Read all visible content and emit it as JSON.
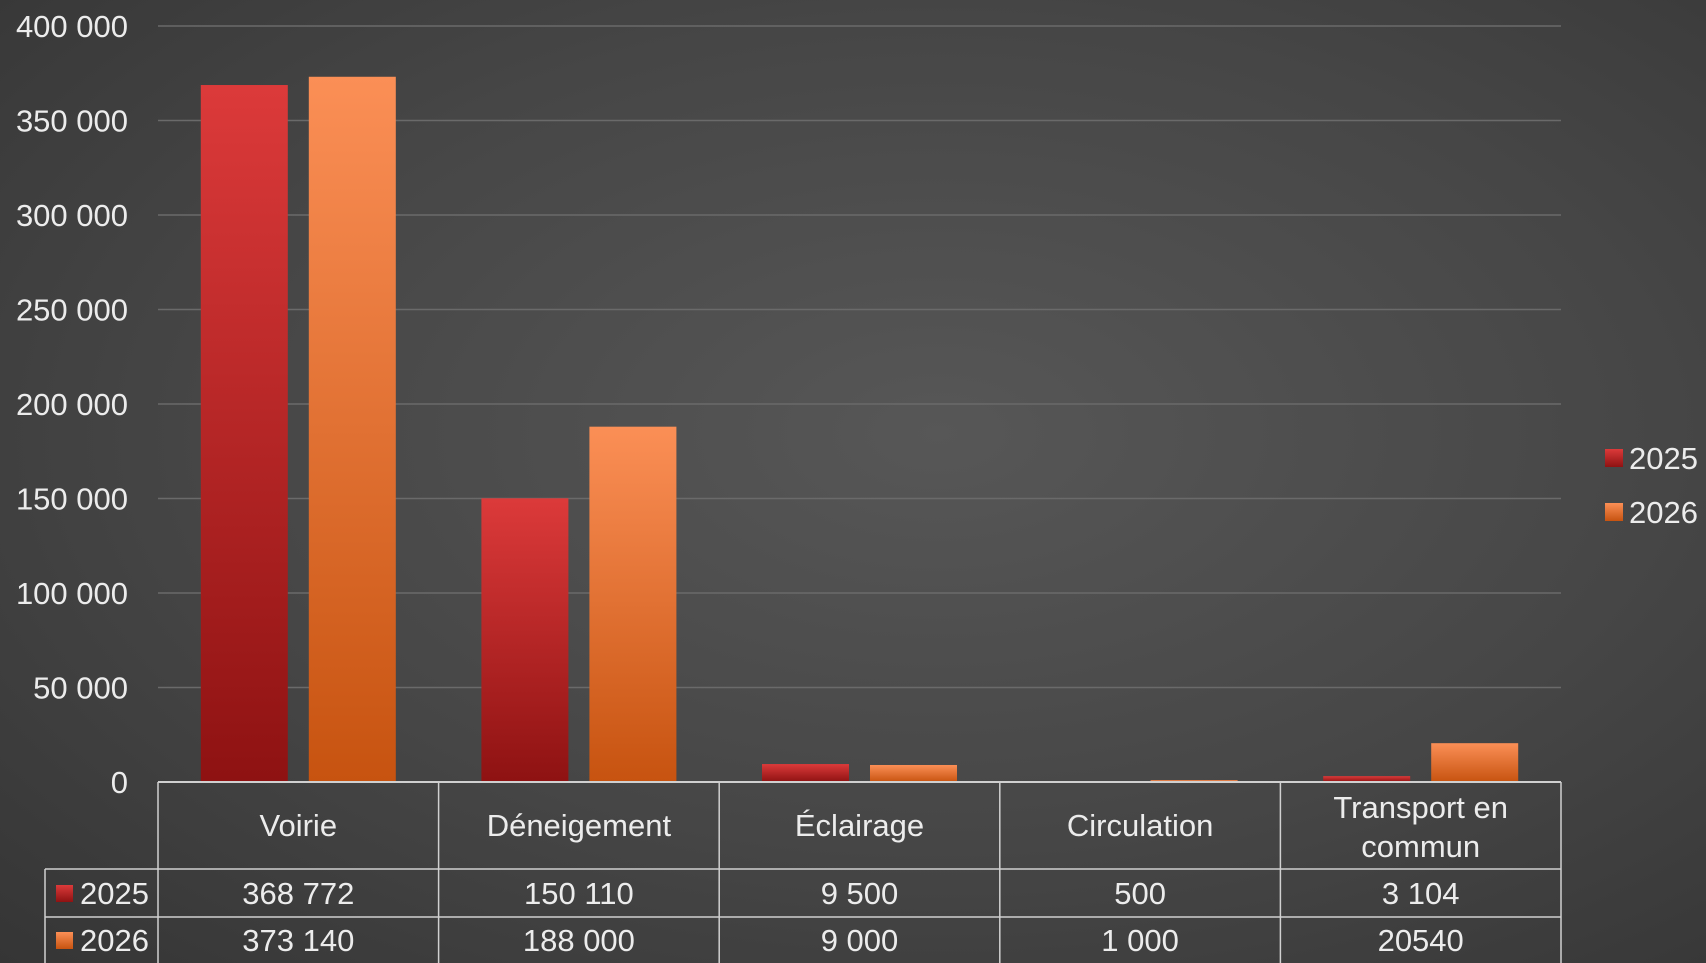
{
  "chart_data": {
    "type": "bar",
    "title": "",
    "xlabel": "",
    "ylabel": "",
    "ylim": [
      0,
      400000
    ],
    "yticks": [
      "0",
      "50 000",
      "100 000",
      "150 000",
      "200 000",
      "250 000",
      "300 000",
      "350 000",
      "400 000"
    ],
    "categories": [
      "Voirie",
      "Déneigement",
      "Éclairage",
      "Circulation",
      "Transport en commun"
    ],
    "series": [
      {
        "name": "2025",
        "values": [
          368772,
          150110,
          9500,
          500,
          3104
        ],
        "labels": [
          "368 772",
          "150 110",
          "9 500",
          "500",
          "3 104"
        ],
        "color_top": "#dc3a3a",
        "color_bottom": "#8e1212"
      },
      {
        "name": "2026",
        "values": [
          373140,
          188000,
          9000,
          1000,
          20540
        ],
        "labels": [
          "373 140",
          "188 000",
          "9 000",
          "1 000",
          "20540"
        ],
        "color_top": "#fb8f56",
        "color_bottom": "#c75310"
      }
    ],
    "legend": "right",
    "grid": true,
    "data_table": true
  }
}
